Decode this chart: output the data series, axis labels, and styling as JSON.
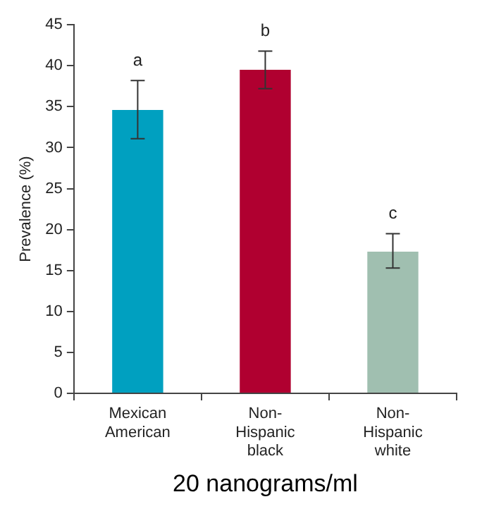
{
  "chart_data": {
    "type": "bar",
    "ylabel": "Prevalence (%)",
    "xlabel": "20 nanograms/ml",
    "categories": [
      "Mexican American",
      "Non-Hispanic black",
      "Non-Hispanic white"
    ],
    "values": [
      34.6,
      39.5,
      17.3
    ],
    "colors": [
      "#00a0c0",
      "#b00030",
      "#a0bfb0"
    ],
    "errors": [
      [
        31.1,
        38.2
      ],
      [
        37.2,
        41.8
      ],
      [
        15.3,
        19.5
      ]
    ],
    "ylim": [
      0,
      45
    ],
    "yticks": [
      0,
      5,
      10,
      15,
      20,
      25,
      30,
      35,
      40,
      45
    ],
    "grid": false,
    "annotations": [
      {
        "text": "a",
        "x": "Mexican American",
        "y": 38.2
      },
      {
        "text": "b",
        "x": "Non-Hispanic black",
        "y": 41.8
      },
      {
        "text": "c",
        "x": "Non-Hispanic white",
        "y": 19.5
      }
    ]
  }
}
